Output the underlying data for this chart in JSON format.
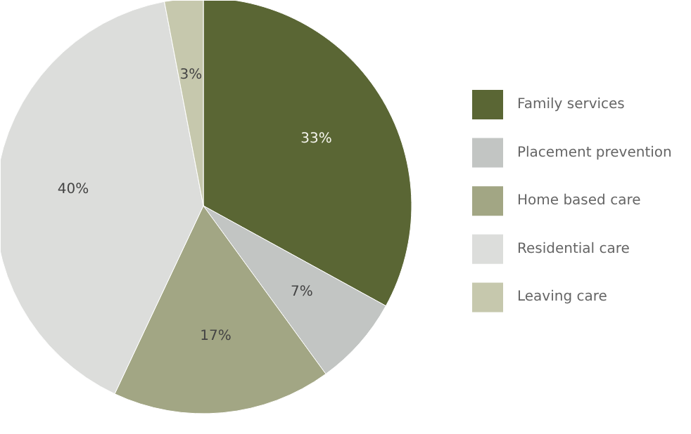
{
  "chart_data": {
    "type": "pie",
    "categories": [
      "Family services",
      "Placement prevention",
      "Home based care",
      "Residential care",
      "Leaving care"
    ],
    "values": [
      33,
      7,
      17,
      40,
      3
    ],
    "colors": [
      "#5a6634",
      "#c2c5c3",
      "#a2a684",
      "#dcdddb",
      "#c6c8ad"
    ],
    "value_labels": [
      "33%",
      "7%",
      "17%",
      "40%",
      "3%"
    ],
    "legend": "right"
  }
}
